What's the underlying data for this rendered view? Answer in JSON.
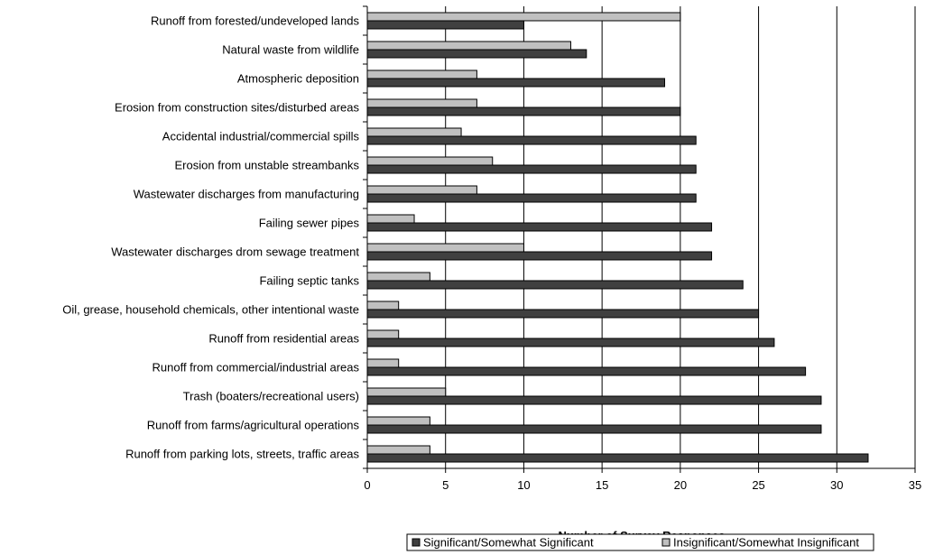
{
  "chart_data": {
    "type": "bar",
    "orientation": "horizontal",
    "categories": [
      "Runoff from forested/undeveloped lands",
      "Natural waste from wildlife",
      "Atmospheric deposition",
      "Erosion from construction sites/disturbed areas",
      "Accidental industrial/commercial spills",
      "Erosion from unstable streambanks",
      "Wastewater discharges from manufacturing",
      "Failing sewer pipes",
      "Wastewater discharges drom sewage treatment",
      "Failing septic tanks",
      "Oil, grease, household chemicals, other intentional waste",
      "Runoff from residential areas",
      "Runoff from commercial/industrial areas",
      "Trash (boaters/recreational users)",
      "Runoff from farms/agricultural operations",
      "Runoff from parking lots, streets, traffic areas"
    ],
    "series": [
      {
        "name": "Significant/Somewhat Significant",
        "color": "#404040",
        "values": [
          10,
          14,
          19,
          20,
          21,
          21,
          21,
          22,
          22,
          24,
          25,
          26,
          28,
          29,
          29,
          32
        ]
      },
      {
        "name": "Insignificant/Somewhat Insignificant",
        "color": "#c0c0c0",
        "values": [
          20,
          13,
          7,
          7,
          6,
          8,
          7,
          3,
          10,
          4,
          2,
          2,
          2,
          5,
          4,
          4
        ]
      }
    ],
    "title": "",
    "xlabel": "Number of Survey Responses",
    "ylabel": "",
    "xlim": [
      0,
      35
    ],
    "xticks": [
      0,
      5,
      10,
      15,
      20,
      25,
      30,
      35
    ],
    "grid": "vertical major gridlines",
    "legend_position": "bottom-right"
  }
}
